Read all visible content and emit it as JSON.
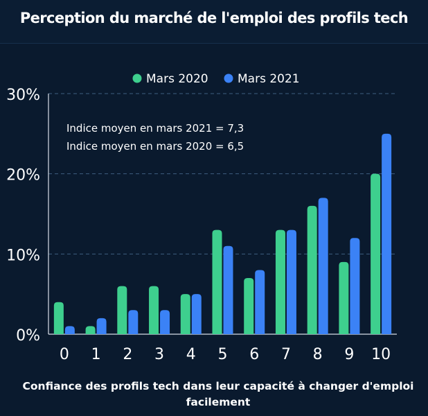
{
  "chart_data": {
    "type": "bar",
    "title": "Perception du marché de l'emploi des profils tech",
    "xlabel": "Confiance des profils tech dans leur capacité à changer d'emploi facilement",
    "ylabel": "",
    "categories": [
      "0",
      "1",
      "2",
      "3",
      "4",
      "5",
      "6",
      "7",
      "8",
      "9",
      "10"
    ],
    "series": [
      {
        "name": "Mars 2020",
        "color": "#3ecf8e",
        "values": [
          4,
          1,
          6,
          6,
          5,
          13,
          7,
          13,
          16,
          9,
          20
        ]
      },
      {
        "name": "Mars 2021",
        "color": "#3b82f6",
        "values": [
          1,
          2,
          3,
          3,
          5,
          11,
          8,
          13,
          17,
          12,
          25
        ]
      }
    ],
    "ylim": [
      0,
      30
    ],
    "yticks": [
      0,
      10,
      20,
      30
    ],
    "ytick_labels": [
      "0%",
      "10%",
      "20%",
      "30%"
    ],
    "grid": true,
    "legend_position": "top-center",
    "annotations": [
      "Indice moyen en mars 2021 = 7,3",
      "Indice moyen en mars 2020 = 6,5"
    ]
  }
}
